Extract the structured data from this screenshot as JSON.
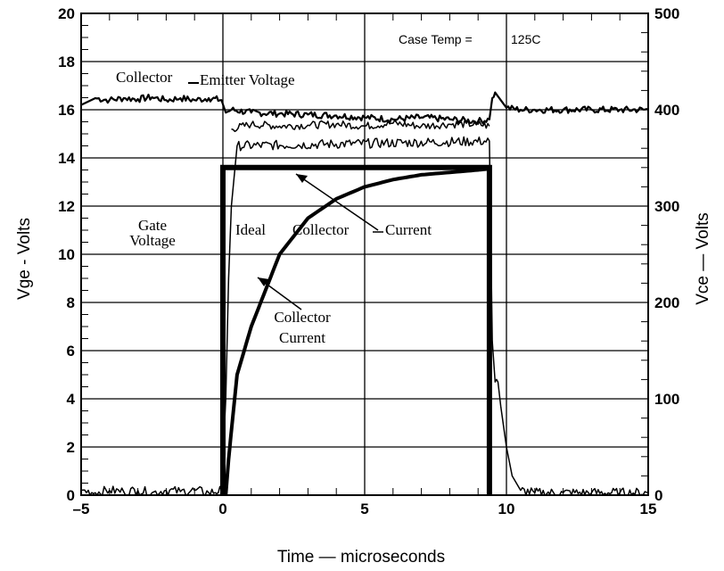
{
  "chart_data": {
    "type": "line",
    "title": "",
    "xlabel": "Time — microseconds",
    "ylabel_left": "Vge - Volts",
    "ylabel_right": "Vce — Volts",
    "xlim": [
      -5,
      15
    ],
    "ylim_left": [
      0,
      20
    ],
    "ylim_right": [
      0,
      500
    ],
    "grid": true,
    "x_ticks": [
      {
        "value": -5,
        "label": "–5"
      },
      {
        "value": 0,
        "label": "0"
      },
      {
        "value": 5,
        "label": "5"
      },
      {
        "value": 10,
        "label": "10"
      },
      {
        "value": 15,
        "label": "15"
      }
    ],
    "y_ticks_left": [
      0,
      2,
      4,
      6,
      8,
      10,
      12,
      14,
      16,
      18,
      20
    ],
    "y_ticks_right": [
      0,
      100,
      200,
      300,
      400,
      500
    ],
    "annotations": {
      "case_temp": "Case Temp =",
      "case_temp_value": "125C",
      "collector_emitter": "Collector",
      "collector_emitter_2": "Emitter Voltage",
      "gate_voltage_1": "Gate",
      "gate_voltage_2": "Voltage",
      "ideal": "Ideal",
      "ideal_collector": "Collector",
      "ideal_current": "Current",
      "collector_current_1": "Collector",
      "collector_current_2": "Current"
    },
    "series": [
      {
        "axis": "right",
        "x": [
          -5,
          -4.5,
          -4,
          -3.5,
          -3,
          -2.5,
          -2,
          -1.5,
          -1,
          -0.5,
          -0.05,
          0.1,
          0.3,
          1,
          2,
          3,
          4,
          5,
          6,
          7,
          8,
          9,
          9.4,
          9.5,
          9.6,
          9.8,
          10,
          10.5,
          11,
          12,
          13,
          14,
          15
        ],
        "y": [
          405,
          412,
          410,
          412,
          411,
          413,
          410,
          412,
          410,
          412,
          410,
          397,
          400,
          397,
          396,
          395,
          394,
          392,
          390,
          392,
          390,
          388,
          390,
          412,
          418,
          410,
          402,
          400,
          400,
          400,
          400,
          400,
          400
        ]
      },
      {
        "axis": "right",
        "x": [
          0.3,
          1,
          2,
          3,
          4,
          5,
          6,
          7,
          8,
          9,
          9.4
        ],
        "y": [
          380,
          385,
          383,
          384,
          385,
          383,
          386,
          383,
          385,
          385,
          383
        ]
      },
      {
        "axis": "left",
        "x": [
          -5,
          -4.5,
          -4,
          -3.5,
          -3,
          -2.5,
          -2,
          -1.5,
          -1,
          -0.5,
          -0.05,
          0.1,
          0.2,
          0.3,
          0.5,
          9.4,
          9.5,
          9.6,
          9.7,
          9.8,
          10,
          10.2,
          10.5,
          11,
          12,
          13,
          14,
          15
        ],
        "y": [
          0.2,
          0.1,
          0.2,
          0.15,
          0.2,
          0.1,
          0.2,
          0.15,
          0.2,
          0.1,
          0.2,
          4,
          9,
          12,
          14.5,
          14.7,
          6.4,
          4.7,
          4.7,
          3.7,
          2,
          0.8,
          0.2,
          0.1,
          0.1,
          0.1,
          0.1,
          0.1
        ]
      },
      {
        "axis": "left",
        "x": [
          0.1,
          0.2,
          0.5,
          1,
          1.5,
          2,
          3,
          4,
          5,
          6,
          7,
          8,
          9,
          9.4
        ],
        "y": [
          0,
          1.5,
          5,
          7,
          8.5,
          10,
          11.5,
          12.3,
          12.8,
          13.1,
          13.3,
          13.4,
          13.5,
          13.55
        ]
      },
      {
        "axis": "left",
        "x": [
          0,
          0,
          9.4,
          9.4
        ],
        "y": [
          0,
          13.6,
          13.6,
          0
        ]
      }
    ]
  }
}
